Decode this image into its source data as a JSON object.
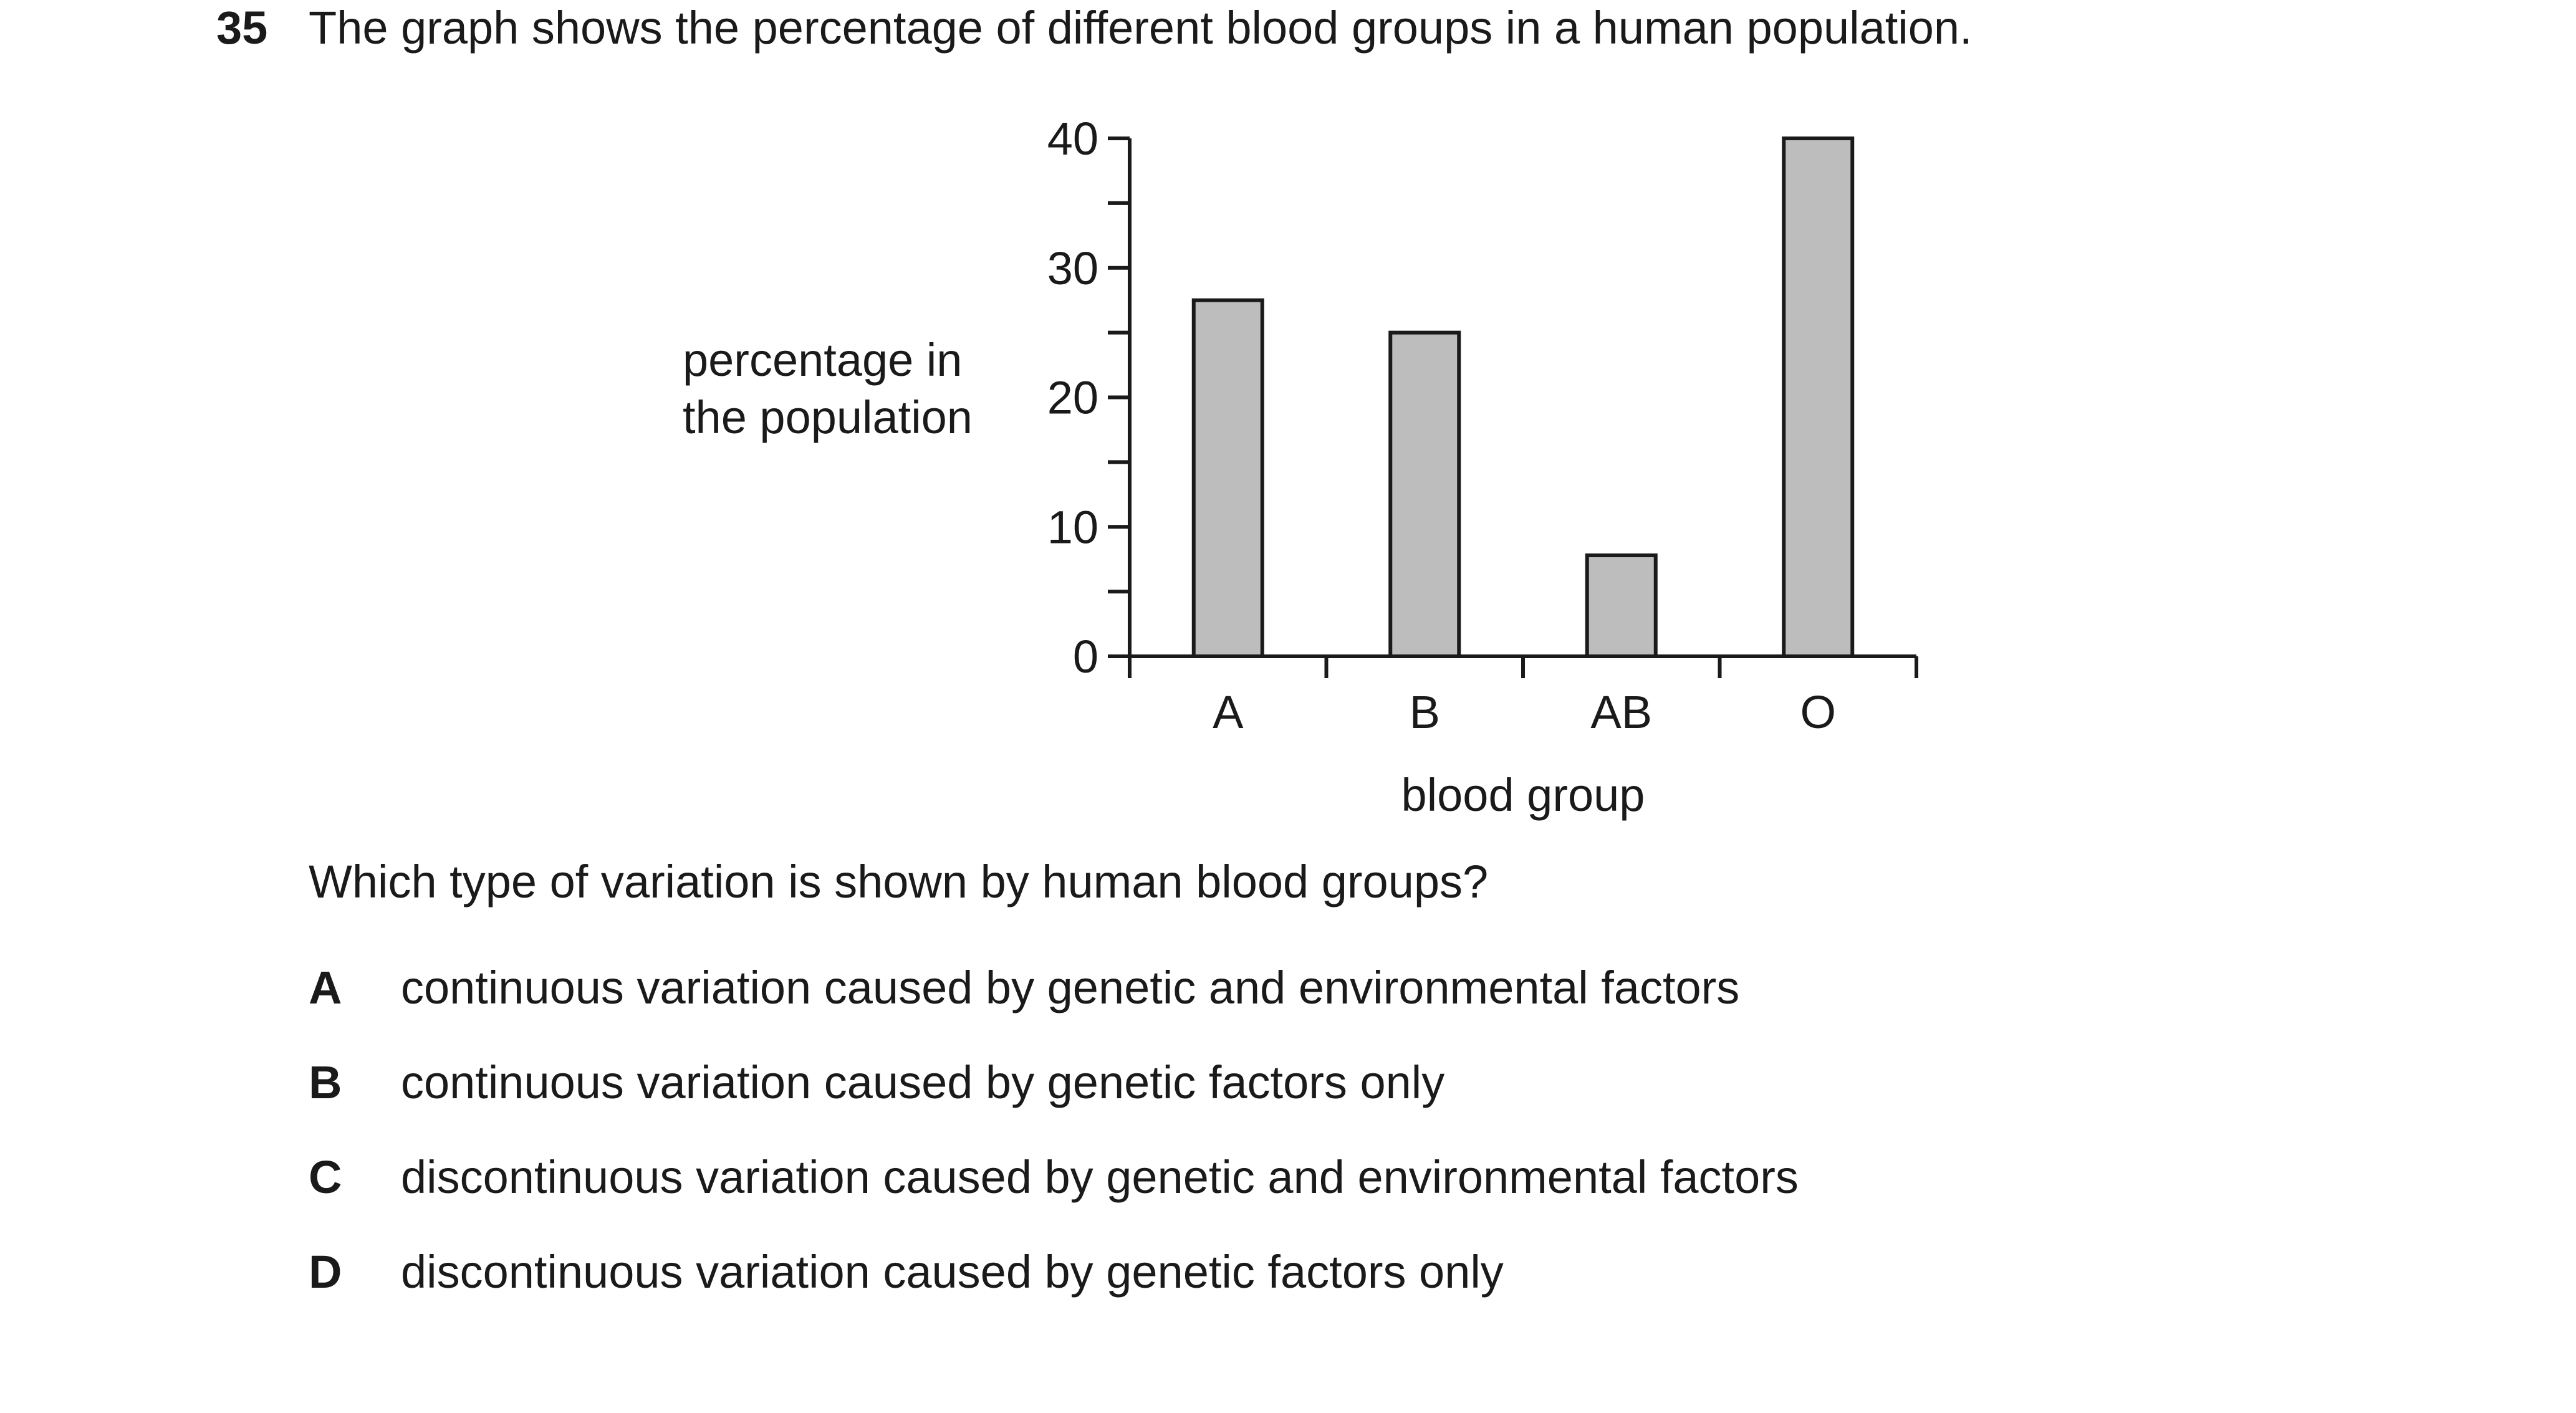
{
  "question": {
    "number": "35",
    "stem": "The graph shows the percentage of different blood groups in a human population.",
    "prompt": "Which type of variation is shown by human blood groups?"
  },
  "options": [
    {
      "letter": "A",
      "text": "continuous variation caused by genetic and environmental factors"
    },
    {
      "letter": "B",
      "text": "continuous variation caused by genetic factors only"
    },
    {
      "letter": "C",
      "text": "discontinuous variation caused by genetic and environmental factors"
    },
    {
      "letter": "D",
      "text": "discontinuous variation caused by genetic factors only"
    }
  ],
  "chart_data": {
    "type": "bar",
    "categories": [
      "A",
      "B",
      "AB",
      "O"
    ],
    "values": [
      27.5,
      25,
      7.8,
      40
    ],
    "ylabel_lines": [
      "percentage in",
      "the population"
    ],
    "xlabel": "blood group",
    "ylim": [
      0,
      40
    ],
    "yticks": [
      0,
      10,
      20,
      30,
      40
    ],
    "minor_tick_step": 5,
    "grid": false,
    "bar_fill": "#bdbdbd",
    "bar_stroke": "#1a1a1a"
  }
}
